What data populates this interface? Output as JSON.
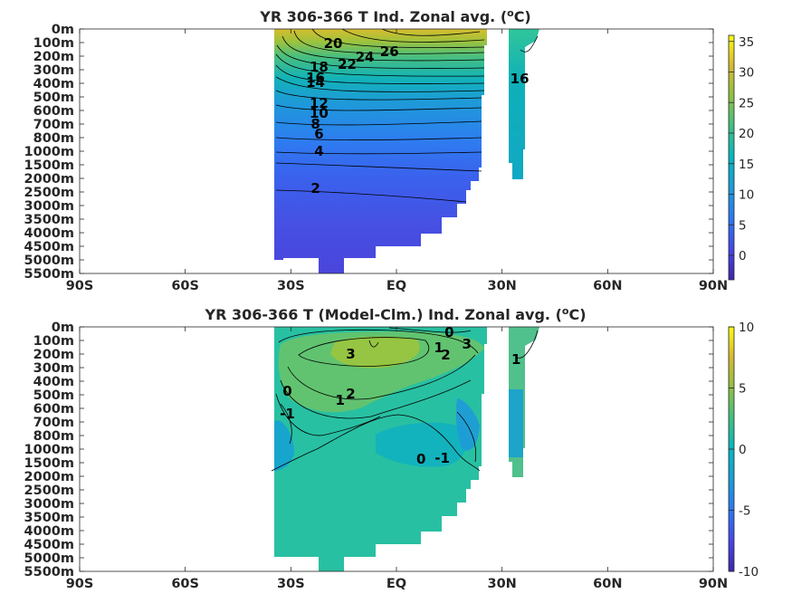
{
  "chart_data": [
    {
      "type": "heatmap",
      "title": "YR 306-366 T Ind. Zonal avg. (",
      "title_sup": "o",
      "title_end": "C)",
      "x_ticks": [
        "90S",
        "60S",
        "30S",
        "EQ",
        "30N",
        "60N",
        "90N"
      ],
      "y_ticks": [
        "0m",
        "100m",
        "200m",
        "300m",
        "400m",
        "500m",
        "600m",
        "700m",
        "800m",
        "1000m",
        "1500m",
        "2000m",
        "2500m",
        "3000m",
        "3500m",
        "4000m",
        "4500m",
        "5000m",
        "5500m"
      ],
      "colorbar": {
        "ticks": [
          "35",
          "30",
          "25",
          "20",
          "15",
          "10",
          "5",
          "0"
        ],
        "range": [
          -4,
          36
        ]
      },
      "contour_labels": [
        {
          "text": "26",
          "lat": -2,
          "depth": "100m",
          "value": 26
        },
        {
          "text": "24",
          "lat": -9,
          "depth": "100m",
          "value": 24
        },
        {
          "text": "22",
          "lat": -14,
          "depth": "100m",
          "value": 22
        },
        {
          "text": "20",
          "lat": -18,
          "depth": "200m",
          "value": 20
        },
        {
          "text": "18",
          "lat": -22,
          "depth": "300m",
          "value": 18
        },
        {
          "text": "16",
          "lat": -23,
          "depth": "300m",
          "value": 16
        },
        {
          "text": "14",
          "lat": -23,
          "depth": "400m",
          "value": 14
        },
        {
          "text": "12",
          "lat": -22,
          "depth": "500m",
          "value": 12
        },
        {
          "text": "10",
          "lat": -22,
          "depth": "600m",
          "value": 10
        },
        {
          "text": "8",
          "lat": -23,
          "depth": "700m",
          "value": 8
        },
        {
          "text": "6",
          "lat": -22,
          "depth": "800m",
          "value": 6
        },
        {
          "text": "4",
          "lat": -22,
          "depth": "1000m",
          "value": 4
        },
        {
          "text": "2",
          "lat": -23,
          "depth": "2500m",
          "value": 2
        },
        {
          "text": "16",
          "lat": 35,
          "depth": "200m",
          "value": 16
        }
      ]
    },
    {
      "type": "heatmap",
      "title": "YR 306-366 T (Model-Clm.) Ind. Zonal avg. (",
      "title_sup": "o",
      "title_end": "C)",
      "x_ticks": [
        "90S",
        "60S",
        "30S",
        "EQ",
        "30N",
        "60N",
        "90N"
      ],
      "y_ticks": [
        "0m",
        "100m",
        "200m",
        "300m",
        "400m",
        "500m",
        "600m",
        "700m",
        "800m",
        "1000m",
        "1500m",
        "2000m",
        "2500m",
        "3000m",
        "3500m",
        "4000m",
        "4500m",
        "5000m",
        "5500m"
      ],
      "colorbar": {
        "ticks": [
          "10",
          "5",
          "0",
          "-5",
          "-10"
        ],
        "range": [
          -10,
          10
        ]
      },
      "contour_labels": [
        {
          "text": "0",
          "lat": 15,
          "depth": "0m",
          "value": 0
        },
        {
          "text": "1",
          "lat": 12,
          "depth": "100m",
          "value": 1
        },
        {
          "text": "2",
          "lat": 14,
          "depth": "100m",
          "value": 2
        },
        {
          "text": "3",
          "lat": 20,
          "depth": "100m",
          "value": 3
        },
        {
          "text": "1",
          "lat": 34,
          "depth": "200m",
          "value": 1
        },
        {
          "text": "3",
          "lat": -13,
          "depth": "300m",
          "value": 3
        },
        {
          "text": "2",
          "lat": -13,
          "depth": "500m",
          "value": 2
        },
        {
          "text": "1",
          "lat": -16,
          "depth": "600m",
          "value": 1
        },
        {
          "text": "0",
          "lat": -31,
          "depth": "500m",
          "value": 0
        },
        {
          "text": "-1",
          "lat": -31,
          "depth": "700m",
          "value": -1
        },
        {
          "text": "-1",
          "lat": 13,
          "depth": "1000m",
          "value": -1
        },
        {
          "text": "0",
          "lat": 7,
          "depth": "1500m",
          "value": 0
        }
      ]
    }
  ]
}
